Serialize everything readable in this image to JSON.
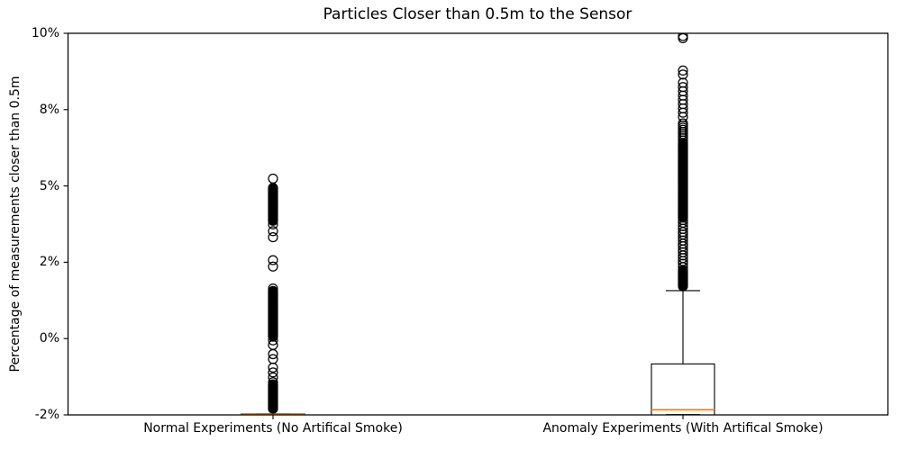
{
  "chart_data": {
    "type": "boxplot",
    "title": "Particles Closer than 0.5m to the Sensor",
    "xlabel": "",
    "ylabel": "Percentage of measurements closer than 0.5m",
    "categories": [
      "Normal Experiments (No Artifical Smoke)",
      "Anomaly Experiments (With Artifical Smoke)"
    ],
    "unit": "percent",
    "ylim": [
      -2.5,
      10
    ],
    "yticks": [
      {
        "value": 10.0,
        "label": "10%"
      },
      {
        "value": 7.5,
        "label": "8%"
      },
      {
        "value": 5.0,
        "label": "5%"
      },
      {
        "value": 2.5,
        "label": "2%"
      },
      {
        "value": 0.0,
        "label": "0%"
      },
      {
        "value": -2.5,
        "label": "-2%"
      }
    ],
    "grid": false,
    "legend": false,
    "colors": {
      "box": "#000000",
      "whisker": "#000000",
      "cap": "#000000",
      "median": "#ff7f0e",
      "flier_edge": "#000000",
      "background": "#ffffff"
    },
    "series": [
      {
        "name": "Normal Experiments (No Artifical Smoke)",
        "q1": -2.6,
        "median": -2.472,
        "q3": -2.465,
        "whisker_low": -2.6,
        "whisker_high": -2.465,
        "outliers": [
          5.24,
          4.94,
          4.92,
          4.9,
          4.88,
          4.86,
          4.84,
          4.82,
          4.8,
          4.78,
          4.76,
          4.74,
          4.72,
          4.7,
          4.68,
          4.66,
          4.64,
          4.62,
          4.6,
          4.58,
          4.56,
          4.54,
          4.52,
          4.5,
          4.48,
          4.46,
          4.44,
          4.42,
          4.4,
          4.38,
          4.36,
          4.34,
          4.32,
          4.3,
          4.28,
          4.26,
          4.24,
          4.22,
          4.2,
          4.18,
          4.16,
          4.14,
          4.12,
          4.1,
          4.08,
          4.06,
          4.04,
          4.02,
          4.0,
          3.98,
          3.96,
          3.94,
          3.92,
          3.9,
          3.88,
          3.86,
          3.74,
          3.52,
          3.32,
          2.57,
          2.36,
          1.64,
          1.56,
          1.54,
          1.52,
          1.5,
          1.48,
          1.46,
          1.44,
          1.42,
          1.4,
          1.38,
          1.36,
          1.34,
          1.32,
          1.3,
          1.28,
          1.26,
          1.24,
          1.22,
          1.2,
          1.18,
          1.16,
          1.14,
          1.12,
          1.1,
          1.08,
          1.06,
          1.04,
          1.02,
          1.0,
          0.98,
          0.96,
          0.94,
          0.92,
          0.9,
          0.88,
          0.86,
          0.84,
          0.82,
          0.8,
          0.78,
          0.76,
          0.74,
          0.72,
          0.7,
          0.68,
          0.66,
          0.64,
          0.62,
          0.6,
          0.58,
          0.56,
          0.54,
          0.52,
          0.5,
          0.48,
          0.46,
          0.44,
          0.42,
          0.4,
          0.38,
          0.36,
          0.34,
          0.32,
          0.3,
          0.28,
          0.26,
          0.24,
          0.22,
          0.2,
          0.18,
          0.16,
          0.14,
          0.12,
          0.1,
          0.08,
          0.06,
          -0.06,
          -0.21,
          -0.51,
          -0.67,
          -0.95,
          -1.11,
          -1.27,
          -1.43,
          -1.5,
          -1.52,
          -1.54,
          -1.56,
          -1.58,
          -1.6,
          -1.62,
          -1.64,
          -1.66,
          -1.68,
          -1.7,
          -1.72,
          -1.74,
          -1.76,
          -1.78,
          -1.8,
          -1.82,
          -1.84,
          -1.86,
          -1.88,
          -1.9,
          -1.92,
          -1.94,
          -1.96,
          -1.98,
          -2.0,
          -2.02,
          -2.04,
          -2.06,
          -2.08,
          -2.1,
          -2.12,
          -2.14,
          -2.16,
          -2.18,
          -2.2,
          -2.22,
          -2.24,
          -2.26,
          -2.28,
          -2.3
        ]
      },
      {
        "name": "Anomaly Experiments (With Artifical Smoke)",
        "q1": -2.52,
        "median": -2.33,
        "q3": -0.83,
        "whisker_low": -2.49,
        "whisker_high": 1.57,
        "outliers": [
          9.91,
          9.84,
          8.78,
          8.65,
          8.38,
          8.24,
          8.1,
          7.96,
          7.82,
          7.68,
          7.54,
          7.4,
          7.26,
          7.05,
          6.98,
          6.91,
          6.84,
          6.77,
          6.7,
          6.63,
          6.56,
          6.49,
          6.4,
          6.378,
          6.356,
          6.334,
          6.312,
          6.29,
          6.268,
          6.246,
          6.224,
          6.202,
          6.18,
          6.158,
          6.136,
          6.114,
          6.092,
          6.07,
          6.048,
          6.026,
          6.004,
          5.982,
          5.96,
          5.938,
          5.916,
          5.894,
          5.872,
          5.85,
          5.828,
          5.806,
          5.784,
          5.762,
          5.74,
          5.718,
          5.696,
          5.674,
          5.652,
          5.63,
          5.608,
          5.586,
          5.564,
          5.542,
          5.52,
          5.498,
          5.476,
          5.454,
          5.432,
          5.41,
          5.388,
          5.366,
          5.344,
          5.322,
          5.3,
          5.278,
          5.256,
          5.234,
          5.212,
          5.19,
          5.168,
          5.146,
          5.124,
          5.102,
          5.08,
          5.058,
          5.036,
          5.014,
          4.992,
          4.97,
          4.948,
          4.926,
          4.904,
          4.882,
          4.86,
          4.838,
          4.816,
          4.794,
          4.772,
          4.75,
          4.728,
          4.706,
          4.684,
          4.662,
          4.64,
          4.618,
          4.596,
          4.574,
          4.552,
          4.53,
          4.508,
          4.486,
          4.464,
          4.442,
          4.42,
          4.398,
          4.376,
          4.354,
          4.332,
          4.31,
          4.288,
          4.266,
          4.244,
          4.222,
          4.2,
          4.178,
          4.156,
          4.134,
          4.112,
          4.09,
          4.068,
          4.046,
          4.024,
          4.002,
          3.98,
          3.958,
          3.88,
          3.795,
          3.685,
          3.595,
          3.49,
          3.41,
          3.31,
          3.215,
          3.105,
          3.02,
          2.92,
          2.83,
          2.725,
          2.64,
          2.54,
          2.45,
          2.34,
          2.24,
          2.218,
          2.196,
          2.174,
          2.152,
          2.13,
          2.108,
          2.086,
          2.064,
          2.042,
          2.02,
          1.998,
          1.976,
          1.954,
          1.932,
          1.91,
          1.888,
          1.866,
          1.844,
          1.822,
          1.8,
          1.778,
          1.756,
          1.734,
          1.712
        ]
      }
    ]
  }
}
